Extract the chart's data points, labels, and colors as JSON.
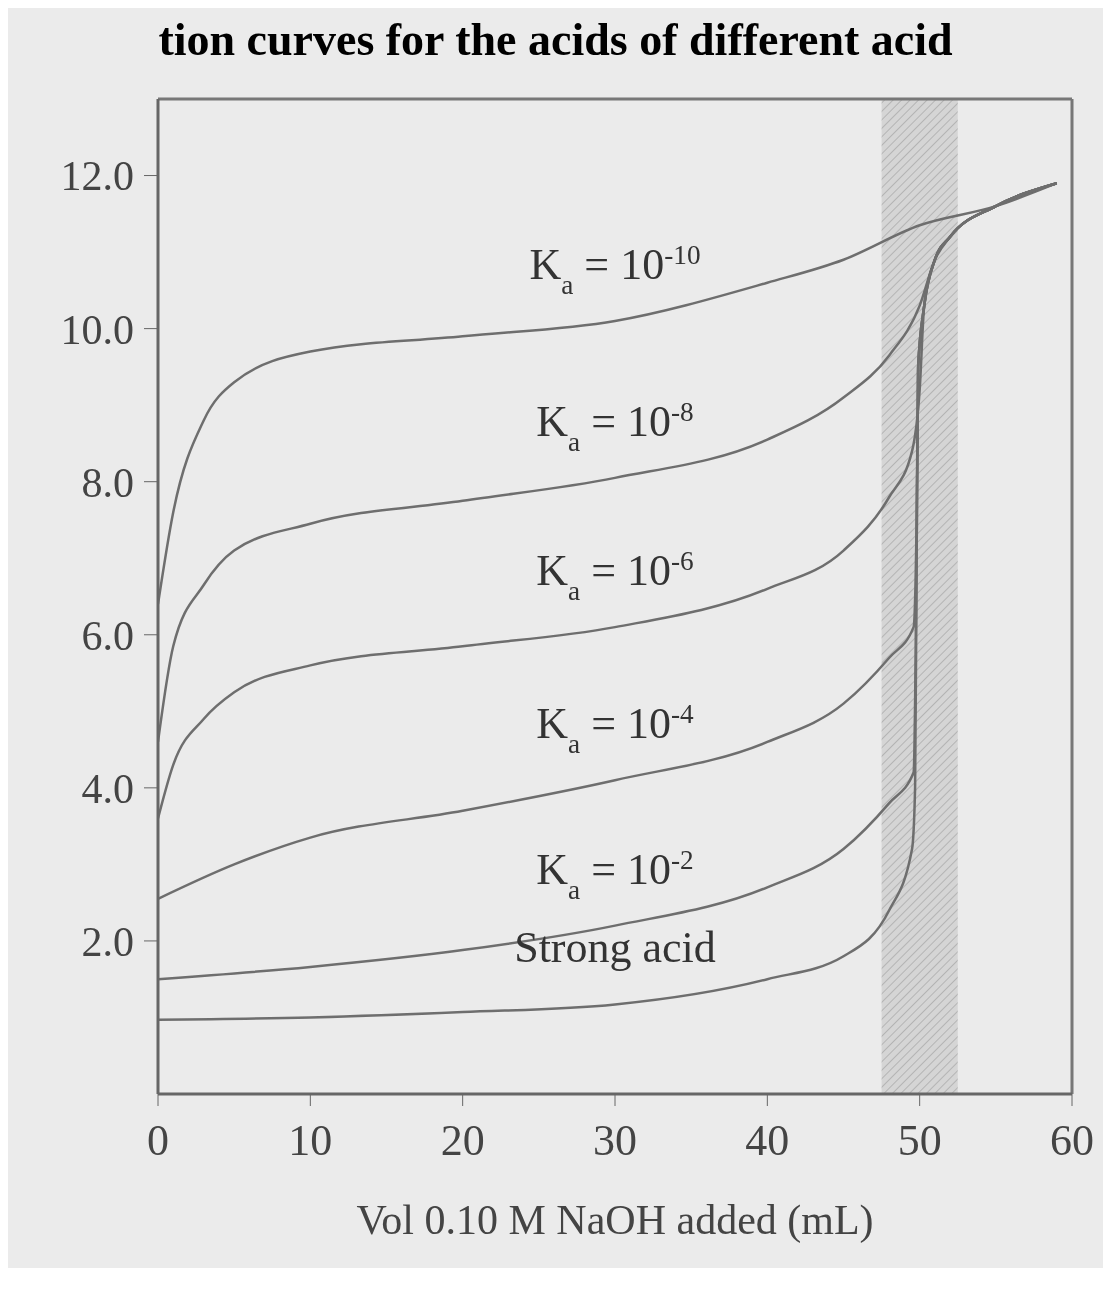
{
  "chart_data": {
    "type": "line",
    "title": "tion curves for the acids of different acid",
    "xlabel": "Vol 0.10 M NaOH added (mL)",
    "xlim": [
      0,
      60
    ],
    "xticks": [
      0,
      10,
      20,
      30,
      40,
      50,
      60
    ],
    "ylim": [
      0,
      13
    ],
    "yticks": [
      {
        "value": 2,
        "label": "2.0"
      },
      {
        "value": 4,
        "label": "4.0"
      },
      {
        "value": 6,
        "label": "6.0"
      },
      {
        "value": 8,
        "label": "8.0"
      },
      {
        "value": 10,
        "label": "10.0"
      },
      {
        "value": 12,
        "label": "12.0"
      }
    ],
    "series": [
      {
        "name": "K$_{a}$ = 10$^{-10}$",
        "color": "#6e6e6e",
        "x": [
          0,
          1,
          3,
          5,
          10,
          20,
          30,
          40,
          45,
          50,
          55,
          59
        ],
        "values": [
          6.4,
          7.6,
          8.8,
          9.3,
          9.7,
          9.9,
          10.1,
          10.6,
          10.9,
          11.35,
          11.6,
          11.9
        ]
      },
      {
        "name": "K$_{a}$ = 10$^{-8}$",
        "color": "#6e6e6e",
        "x": [
          0,
          1,
          3,
          5,
          10,
          20,
          30,
          40,
          45,
          48,
          50,
          51,
          52,
          55,
          59
        ],
        "values": [
          4.6,
          5.85,
          6.65,
          7.1,
          7.45,
          7.75,
          8.05,
          8.55,
          9.1,
          9.65,
          10.3,
          10.9,
          11.2,
          11.6,
          11.9
        ]
      },
      {
        "name": "K$_{a}$ = 10$^{-6}$",
        "color": "#6e6e6e",
        "x": [
          0,
          1,
          3,
          5,
          10,
          20,
          30,
          40,
          45,
          48,
          49.5,
          50,
          50.3,
          51,
          52,
          55,
          59
        ],
        "values": [
          3.6,
          4.3,
          4.9,
          5.25,
          5.6,
          5.85,
          6.1,
          6.6,
          7.1,
          7.8,
          8.4,
          9.2,
          10.3,
          10.9,
          11.2,
          11.6,
          11.9
        ]
      },
      {
        "name": "K$_{a}$ = 10$^{-4}$",
        "color": "#6e6e6e",
        "x": [
          0,
          5,
          10,
          20,
          30,
          40,
          45,
          48,
          49.6,
          49.8,
          49.9,
          50.3,
          51,
          52,
          55,
          59
        ],
        "values": [
          2.55,
          3.0,
          3.35,
          3.7,
          4.1,
          4.6,
          5.1,
          5.7,
          6.1,
          7.5,
          9.5,
          10.3,
          10.9,
          11.2,
          11.6,
          11.9
        ]
      },
      {
        "name": "K$_{a}$ = 10$^{-2}$",
        "color": "#6e6e6e",
        "x": [
          0,
          10,
          20,
          30,
          40,
          45,
          48,
          49.6,
          49.8,
          49.9,
          50.3,
          51,
          52,
          55,
          59
        ],
        "values": [
          1.5,
          1.66,
          1.88,
          2.2,
          2.7,
          3.2,
          3.8,
          4.2,
          7.0,
          9.5,
          10.3,
          10.9,
          11.2,
          11.6,
          11.9
        ]
      },
      {
        "name": "Strong acid",
        "color": "#6e6e6e",
        "x": [
          0,
          10,
          20,
          30,
          40,
          45,
          48,
          49.5,
          49.7,
          49.8,
          49.9,
          50.3,
          51,
          52,
          55,
          59
        ],
        "values": [
          0.97,
          1.0,
          1.07,
          1.17,
          1.5,
          1.8,
          2.4,
          3.2,
          4.0,
          7.0,
          9.5,
          10.3,
          10.9,
          11.2,
          11.6,
          11.9
        ]
      }
    ],
    "bands": [
      {
        "axis": "x",
        "from": 47.5,
        "to": 52.5,
        "color": "#b4b4b4"
      }
    ]
  }
}
